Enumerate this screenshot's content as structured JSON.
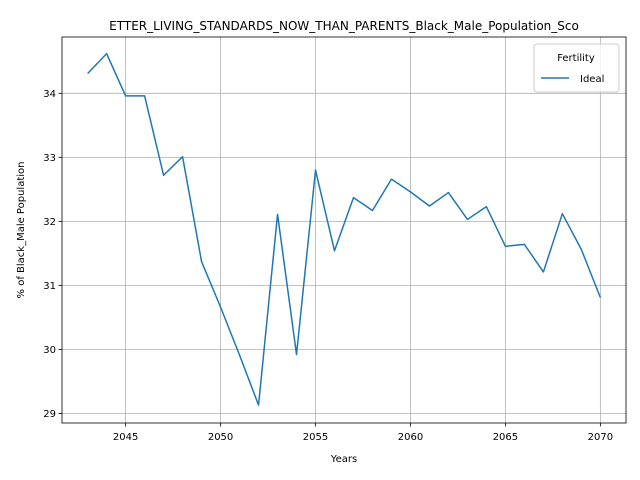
{
  "chart_data": {
    "type": "line",
    "title": "ETTER_LIVING_STANDARDS_NOW_THAN_PARENTS_Black_Male_Population_Sco",
    "xlabel": "Years",
    "ylabel": "% of Black_Male Population",
    "xlim": [
      2041.65,
      2071.35
    ],
    "ylim": [
      28.85,
      34.88
    ],
    "xticks": [
      2045,
      2050,
      2055,
      2060,
      2065,
      2070
    ],
    "yticks": [
      29,
      30,
      31,
      32,
      33,
      34
    ],
    "grid": true,
    "legend": {
      "title": "Fertility",
      "placement": "top-right"
    },
    "series": [
      {
        "name": "Ideal",
        "color": "#1f77b4",
        "x": [
          2043,
          2044,
          2045,
          2046,
          2047,
          2048,
          2049,
          2050,
          2051,
          2052,
          2053,
          2054,
          2055,
          2056,
          2057,
          2058,
          2059,
          2060,
          2061,
          2062,
          2063,
          2064,
          2065,
          2066,
          2067,
          2068,
          2069,
          2070
        ],
        "values": [
          34.31,
          34.62,
          33.96,
          33.96,
          32.72,
          33.01,
          31.37,
          30.66,
          29.91,
          29.13,
          32.11,
          29.92,
          32.8,
          31.54,
          32.37,
          32.17,
          32.66,
          32.46,
          32.24,
          32.45,
          32.03,
          32.23,
          31.61,
          31.64,
          31.21,
          32.12,
          31.56,
          30.81
        ]
      }
    ]
  }
}
